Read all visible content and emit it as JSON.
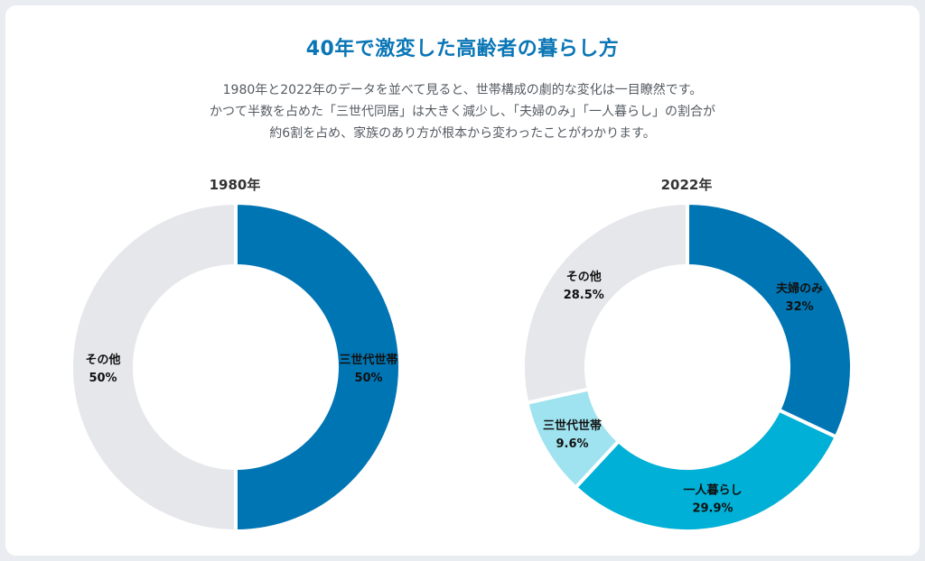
{
  "header": {
    "title": "40年で激変した高齢者の暮らし方",
    "desc_lines": [
      "1980年と2022年のデータを並べて見ると、世帯構成の劇的な変化は一目瞭然です。",
      "かつて半数を占めた「三世代同居」は大きく減少し、「夫婦のみ」「一人暮らし」の割合が",
      "約6割を占め、家族のあり方が根本から変わったことがわかります。"
    ]
  },
  "colors": {
    "fufu": "#0075b3",
    "hitori": "#00b0d6",
    "sansedai_2022": "#9ee3ef",
    "sonota": "#e6e7eb",
    "sansedai_1980": "#0075b3"
  },
  "chart_data": [
    {
      "type": "pie",
      "title": "1980年",
      "slices": [
        {
          "label": "三世代世帯",
          "value": 50,
          "value_label": "50%",
          "color": "#0075b3"
        },
        {
          "label": "その他",
          "value": 50,
          "value_label": "50%",
          "color": "#e6e7eb"
        }
      ]
    },
    {
      "type": "pie",
      "title": "2022年",
      "slices": [
        {
          "label": "夫婦のみ",
          "value": 32,
          "value_label": "32%",
          "color": "#0075b3"
        },
        {
          "label": "一人暮らし",
          "value": 29.9,
          "value_label": "29.9%",
          "color": "#00b0d6"
        },
        {
          "label": "三世代世帯",
          "value": 9.6,
          "value_label": "9.6%",
          "color": "#9ee3ef"
        },
        {
          "label": "その他",
          "value": 28.5,
          "value_label": "28.5%",
          "color": "#e6e7eb"
        }
      ]
    }
  ]
}
